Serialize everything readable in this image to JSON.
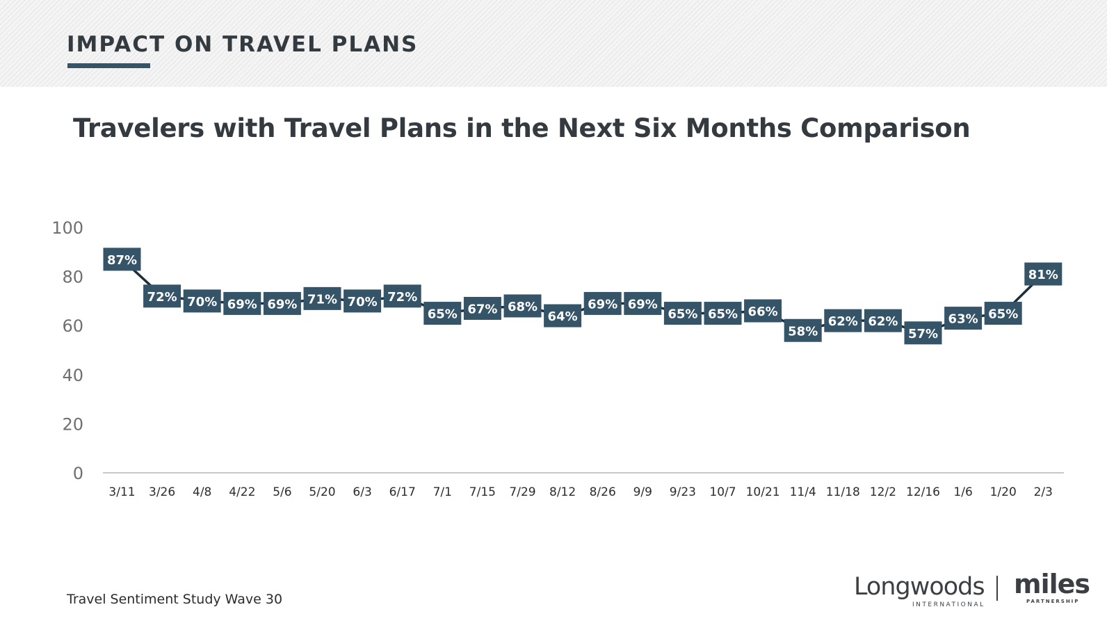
{
  "header": {
    "section_title": "IMPACT ON TRAVEL PLANS"
  },
  "chart_data": {
    "type": "line",
    "title": "Travelers with Travel Plans in the Next Six Months Comparison",
    "xlabel": "",
    "ylabel": "",
    "categories": [
      "3/11",
      "3/26",
      "4/8",
      "4/22",
      "5/6",
      "5/20",
      "6/3",
      "6/17",
      "7/1",
      "7/15",
      "7/29",
      "8/12",
      "8/26",
      "9/9",
      "9/23",
      "10/7",
      "10/21",
      "11/4",
      "11/18",
      "12/2",
      "12/16",
      "1/6",
      "1/20",
      "2/3"
    ],
    "values": [
      87,
      72,
      70,
      69,
      69,
      71,
      70,
      72,
      65,
      67,
      68,
      64,
      69,
      69,
      65,
      65,
      66,
      58,
      62,
      62,
      57,
      63,
      65,
      81
    ],
    "data_labels": [
      "87%",
      "72%",
      "70%",
      "69%",
      "69%",
      "71%",
      "70%",
      "72%",
      "65%",
      "67%",
      "68%",
      "64%",
      "69%",
      "69%",
      "65%",
      "65%",
      "66%",
      "58%",
      "62%",
      "62%",
      "57%",
      "63%",
      "65%",
      "81%"
    ],
    "y_ticks": [
      0,
      20,
      40,
      60,
      80,
      100
    ],
    "ylim": [
      0,
      100
    ],
    "grid": false,
    "legend": "none",
    "line_color": "#1b2e3c",
    "label_box_color": "#355468",
    "label_text_color": "#ffffff"
  },
  "footer": {
    "source": "Travel Sentiment Study Wave 30",
    "logo_left_word": "Longwoods",
    "logo_left_sub": "INTERNATIONAL",
    "logo_right_word": "miles",
    "logo_right_sub": "PARTNERSHIP"
  }
}
